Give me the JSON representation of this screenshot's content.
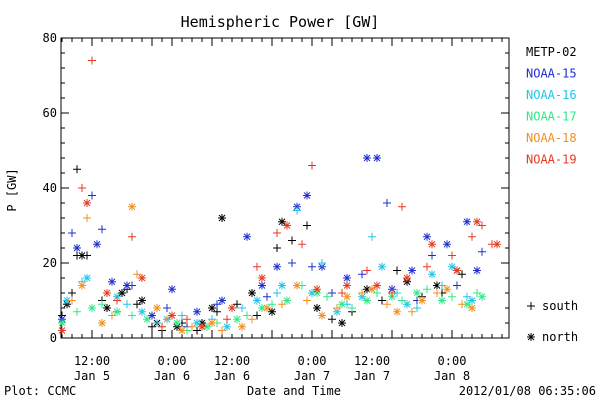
{
  "chart_data": {
    "type": "scatter",
    "title": "Hemispheric Power [GW]",
    "ylabel": "P [GW]",
    "xlabel": "Date and Time",
    "ylim": [
      0,
      80
    ],
    "yticks": [
      0,
      20,
      40,
      60,
      80
    ],
    "xlim_hours": [
      0,
      80
    ],
    "x_ticks": [
      {
        "h": 12,
        "time": "12:00",
        "date": "Jan 5"
      },
      {
        "h": 28,
        "time": "0:00",
        "date": "Jan 6"
      },
      {
        "h": 40,
        "time": "12:00",
        "date": "Jan 6"
      },
      {
        "h": 56,
        "time": "0:00",
        "date": "Jan 7"
      },
      {
        "h": 68,
        "time": "12:00",
        "date": "Jan 7"
      },
      {
        "h": 84,
        "time": "0:00",
        "date": "Jan 8"
      }
    ],
    "hemisphere_legend": [
      {
        "symbol": "+",
        "label": "south"
      },
      {
        "symbol": "*",
        "label": "north"
      }
    ],
    "series": [
      {
        "name": "METP-02",
        "color": "#000000",
        "south": [
          [
            3,
            4
          ],
          [
            6,
            6
          ],
          [
            8,
            12
          ],
          [
            9,
            22
          ],
          [
            9,
            45
          ],
          [
            11,
            22
          ],
          [
            14,
            10
          ],
          [
            17,
            7
          ],
          [
            19,
            13
          ],
          [
            21,
            9
          ],
          [
            24,
            3
          ],
          [
            26,
            2
          ],
          [
            30,
            4
          ],
          [
            33,
            2
          ],
          [
            37,
            7
          ],
          [
            41,
            9
          ],
          [
            45,
            6
          ],
          [
            49,
            24
          ],
          [
            52,
            26
          ],
          [
            55,
            30
          ],
          [
            60,
            5
          ],
          [
            64,
            7
          ],
          [
            70,
            10
          ],
          [
            73,
            18
          ],
          [
            78,
            11
          ],
          [
            82,
            12
          ],
          [
            86,
            17
          ]
        ],
        "north": [
          [
            4,
            3
          ],
          [
            7,
            9
          ],
          [
            10,
            22
          ],
          [
            15,
            8
          ],
          [
            18,
            12
          ],
          [
            22,
            10
          ],
          [
            25,
            4
          ],
          [
            29,
            3
          ],
          [
            34,
            4
          ],
          [
            36,
            8
          ],
          [
            38,
            32
          ],
          [
            44,
            12
          ],
          [
            48,
            7
          ],
          [
            50,
            31
          ],
          [
            57,
            8
          ],
          [
            62,
            4
          ],
          [
            67,
            13
          ],
          [
            75,
            15
          ],
          [
            81,
            14
          ],
          [
            85,
            18
          ]
        ]
      },
      {
        "name": "NOAA-15",
        "color": "#1f2fd0",
        "south": [
          [
            8,
            28
          ],
          [
            12,
            38
          ],
          [
            14,
            29
          ],
          [
            20,
            14
          ],
          [
            27,
            8
          ],
          [
            31,
            3
          ],
          [
            37,
            9
          ],
          [
            47,
            11
          ],
          [
            52,
            20
          ],
          [
            56,
            19
          ],
          [
            60,
            12
          ],
          [
            66,
            17
          ],
          [
            71,
            36
          ],
          [
            77,
            10
          ],
          [
            80,
            22
          ],
          [
            85,
            14
          ],
          [
            90,
            23
          ]
        ],
        "north": [
          [
            6,
            5
          ],
          [
            9,
            24
          ],
          [
            13,
            25
          ],
          [
            16,
            15
          ],
          [
            19,
            14
          ],
          [
            24,
            6
          ],
          [
            28,
            13
          ],
          [
            33,
            7
          ],
          [
            38,
            10
          ],
          [
            43,
            27
          ],
          [
            46,
            14
          ],
          [
            49,
            19
          ],
          [
            53,
            35
          ],
          [
            55,
            38
          ],
          [
            58,
            19
          ],
          [
            63,
            16
          ],
          [
            67,
            48
          ],
          [
            69,
            48
          ],
          [
            72,
            13
          ],
          [
            76,
            18
          ],
          [
            79,
            27
          ],
          [
            83,
            25
          ],
          [
            87,
            31
          ],
          [
            89,
            18
          ]
        ]
      },
      {
        "name": "NOAA-16",
        "color": "#22c4e8",
        "south": [
          [
            5,
            8
          ],
          [
            10,
            15
          ],
          [
            15,
            12
          ],
          [
            19,
            9
          ],
          [
            25,
            4
          ],
          [
            30,
            6
          ],
          [
            36,
            5
          ],
          [
            42,
            8
          ],
          [
            49,
            12
          ],
          [
            53,
            34
          ],
          [
            58,
            20
          ],
          [
            63,
            9
          ],
          [
            68,
            27
          ],
          [
            73,
            12
          ],
          [
            77,
            8
          ],
          [
            82,
            14
          ],
          [
            87,
            11
          ]
        ],
        "north": [
          [
            7,
            10
          ],
          [
            11,
            16
          ],
          [
            17,
            11
          ],
          [
            22,
            7
          ],
          [
            27,
            5
          ],
          [
            33,
            4
          ],
          [
            39,
            3
          ],
          [
            45,
            10
          ],
          [
            50,
            14
          ],
          [
            56,
            12
          ],
          [
            61,
            7
          ],
          [
            66,
            11
          ],
          [
            70,
            19
          ],
          [
            75,
            9
          ],
          [
            80,
            17
          ],
          [
            84,
            19
          ],
          [
            88,
            10
          ]
        ]
      },
      {
        "name": "NOAA-17",
        "color": "#30e888",
        "south": [
          [
            4,
            3
          ],
          [
            9,
            7
          ],
          [
            14,
            9
          ],
          [
            20,
            6
          ],
          [
            26,
            3
          ],
          [
            31,
            2
          ],
          [
            37,
            4
          ],
          [
            43,
            6
          ],
          [
            48,
            9
          ],
          [
            54,
            14
          ],
          [
            59,
            11
          ],
          [
            64,
            8
          ],
          [
            69,
            12
          ],
          [
            74,
            10
          ],
          [
            79,
            13
          ],
          [
            84,
            11
          ],
          [
            89,
            12
          ]
        ],
        "north": [
          [
            6,
            4
          ],
          [
            12,
            8
          ],
          [
            17,
            7
          ],
          [
            23,
            5
          ],
          [
            29,
            4
          ],
          [
            35,
            3
          ],
          [
            41,
            5
          ],
          [
            46,
            8
          ],
          [
            51,
            10
          ],
          [
            57,
            12
          ],
          [
            62,
            9
          ],
          [
            67,
            10
          ],
          [
            72,
            11
          ],
          [
            77,
            12
          ],
          [
            82,
            10
          ],
          [
            87,
            9
          ],
          [
            90,
            11
          ]
        ]
      },
      {
        "name": "NOAA-18",
        "color": "#f09020",
        "south": [
          [
            3,
            2
          ],
          [
            8,
            10
          ],
          [
            11,
            32
          ],
          [
            16,
            6
          ],
          [
            21,
            17
          ],
          [
            27,
            5
          ],
          [
            32,
            3
          ],
          [
            38,
            2
          ],
          [
            44,
            5
          ],
          [
            50,
            9
          ],
          [
            55,
            10
          ],
          [
            61,
            8
          ],
          [
            66,
            12
          ],
          [
            71,
            9
          ],
          [
            76,
            7
          ],
          [
            81,
            12
          ],
          [
            86,
            9
          ]
        ],
        "north": [
          [
            5,
            3
          ],
          [
            10,
            14
          ],
          [
            14,
            4
          ],
          [
            20,
            35
          ],
          [
            25,
            8
          ],
          [
            30,
            2
          ],
          [
            36,
            4
          ],
          [
            42,
            3
          ],
          [
            47,
            8
          ],
          [
            53,
            14
          ],
          [
            58,
            6
          ],
          [
            63,
            11
          ],
          [
            68,
            13
          ],
          [
            73,
            7
          ],
          [
            78,
            10
          ],
          [
            83,
            13
          ],
          [
            88,
            8
          ]
        ]
      },
      {
        "name": "NOAA-19",
        "color": "#e83a20",
        "south": [
          [
            4,
            5
          ],
          [
            10,
            40
          ],
          [
            12,
            74
          ],
          [
            17,
            10
          ],
          [
            20,
            27
          ],
          [
            26,
            3
          ],
          [
            31,
            5
          ],
          [
            39,
            5
          ],
          [
            45,
            19
          ],
          [
            49,
            28
          ],
          [
            54,
            25
          ],
          [
            56,
            46
          ],
          [
            62,
            12
          ],
          [
            67,
            18
          ],
          [
            72,
            12
          ],
          [
            74,
            35
          ],
          [
            79,
            19
          ],
          [
            84,
            22
          ],
          [
            88,
            27
          ],
          [
            90,
            30
          ],
          [
            92,
            25
          ]
        ],
        "north": [
          [
            6,
            2
          ],
          [
            11,
            36
          ],
          [
            15,
            12
          ],
          [
            22,
            16
          ],
          [
            28,
            6
          ],
          [
            34,
            3
          ],
          [
            40,
            8
          ],
          [
            46,
            16
          ],
          [
            51,
            30
          ],
          [
            57,
            13
          ],
          [
            63,
            14
          ],
          [
            69,
            14
          ],
          [
            75,
            16
          ],
          [
            80,
            25
          ],
          [
            85,
            18
          ],
          [
            89,
            31
          ],
          [
            93,
            25
          ]
        ]
      }
    ]
  },
  "footer": {
    "plot_credit": "Plot: CCMC",
    "timestamp": "2012/01/08 06:35:06"
  }
}
